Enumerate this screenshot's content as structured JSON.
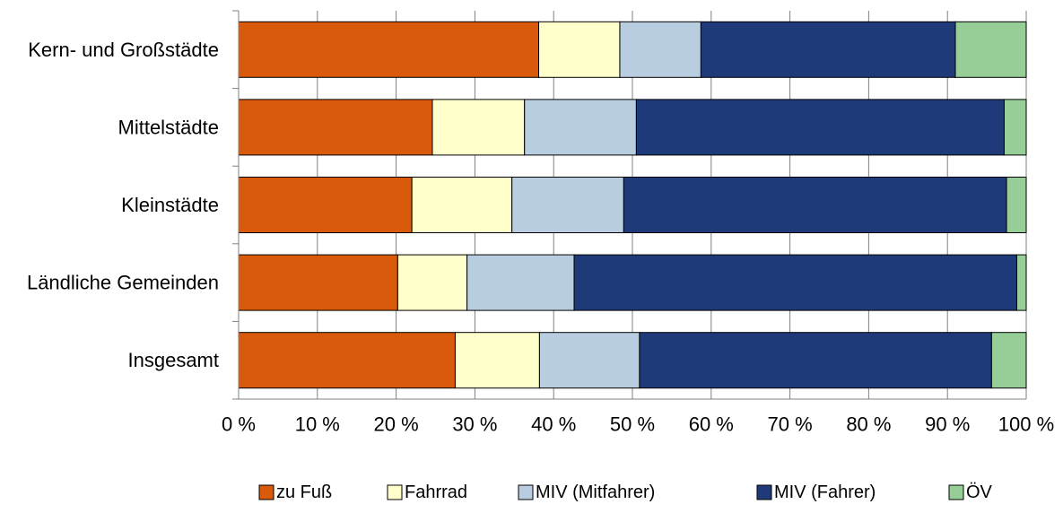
{
  "chart_data": {
    "type": "bar",
    "orientation": "horizontal",
    "stacked": true,
    "percent_stacked": true,
    "categories": [
      "Kern- und Großstädte",
      "Mittelstädte",
      "Kleinstädte",
      "Ländliche Gemeinden",
      "Insgesamt"
    ],
    "series": [
      {
        "name": "zu Fuß",
        "color": "#D85A0A",
        "values": [
          38.1,
          24.6,
          22.0,
          20.2,
          27.5
        ]
      },
      {
        "name": "Fahrrad",
        "color": "#FFFFCC",
        "values": [
          10.3,
          11.7,
          12.7,
          8.8,
          10.7
        ]
      },
      {
        "name": "MIV (Mitfahrer)",
        "color": "#B9CDE0",
        "values": [
          10.3,
          14.2,
          14.2,
          13.6,
          12.7
        ]
      },
      {
        "name": "MIV (Fahrer)",
        "color": "#1F3A78",
        "values": [
          32.3,
          46.7,
          48.6,
          56.2,
          44.7
        ]
      },
      {
        "name": "ÖV",
        "color": "#97CE97",
        "values": [
          9.0,
          2.8,
          2.5,
          1.2,
          4.4
        ]
      }
    ],
    "xlim": [
      0,
      100
    ],
    "xticks": [
      0,
      10,
      20,
      30,
      40,
      50,
      60,
      70,
      80,
      90,
      100
    ],
    "tick_labels": [
      "0 %",
      "10 %",
      "20 %",
      "30 %",
      "40 %",
      "50 %",
      "60 %",
      "70 %",
      "80 %",
      "90 %",
      "100 %"
    ],
    "grid": "vertical",
    "legend": "bottom",
    "title": "",
    "xlabel": "",
    "ylabel": ""
  }
}
